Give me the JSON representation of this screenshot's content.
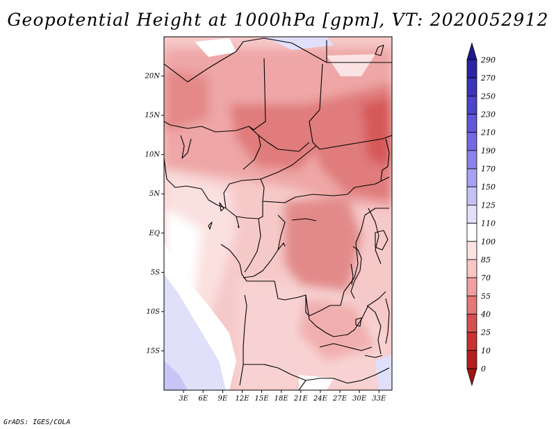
{
  "title": "Geopotential Height at 1000hPa [gpm], VT: 2020052912",
  "credit": "GrADS: IGES/COLA",
  "map": {
    "region": "Central Africa",
    "lon_range": [
      0,
      35
    ],
    "lat_range": [
      -20,
      25
    ],
    "lon_ticks": [
      "3E",
      "6E",
      "9E",
      "12E",
      "15E",
      "18E",
      "21E",
      "24E",
      "27E",
      "30E",
      "33E"
    ],
    "lat_ticks": [
      "20N",
      "15N",
      "10N",
      "5N",
      "EQ",
      "5S",
      "10S",
      "15S"
    ]
  },
  "colorbar": {
    "levels": [
      "290",
      "270",
      "250",
      "230",
      "210",
      "190",
      "170",
      "150",
      "125",
      "110",
      "100",
      "85",
      "70",
      "55",
      "40",
      "25",
      "10",
      "0"
    ],
    "colors": [
      "#1f1a8c",
      "#2b25a3",
      "#3a34b6",
      "#4b45c8",
      "#6058d6",
      "#7468e0",
      "#8c82e9",
      "#a8a0f0",
      "#c6c2f6",
      "#e2e0fa",
      "#ffffff",
      "#fde2e2",
      "#f9c5c5",
      "#f0a0a0",
      "#e27878",
      "#d55050",
      "#c83232",
      "#b41e1e",
      "#a01414"
    ]
  }
}
